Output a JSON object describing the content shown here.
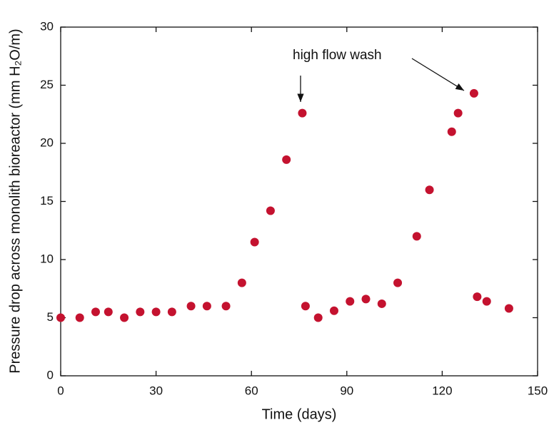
{
  "chart_data": {
    "type": "scatter",
    "x_label": "Time (days)",
    "y_label": "Pressure drop across monolith bioreactor (mm H₂O/m)",
    "annotation": "high flow wash",
    "series": [
      {
        "color": "#c4122f",
        "x": [
          0,
          6,
          11,
          15,
          20,
          25,
          30,
          35,
          41,
          46,
          52,
          57,
          61,
          66,
          71,
          76,
          77,
          81,
          86,
          91,
          96,
          101,
          106,
          112,
          116,
          123,
          125,
          130,
          131,
          134,
          141
        ],
        "values": [
          5,
          5,
          5.5,
          5.5,
          5,
          5.5,
          5.5,
          5.5,
          6,
          6,
          6,
          8,
          11.5,
          14.2,
          18.6,
          22.6,
          6,
          5,
          5.6,
          6.4,
          6.6,
          6.2,
          8,
          12,
          16,
          21,
          22.6,
          24.3,
          6.8,
          6.4,
          5.8
        ]
      }
    ],
    "xlim": [
      0,
      150
    ],
    "xticks": [
      0,
      30,
      60,
      90,
      120,
      150
    ],
    "ylim": [
      0,
      30
    ],
    "yticks": [
      0,
      5,
      10,
      15,
      20,
      25,
      30
    ]
  }
}
